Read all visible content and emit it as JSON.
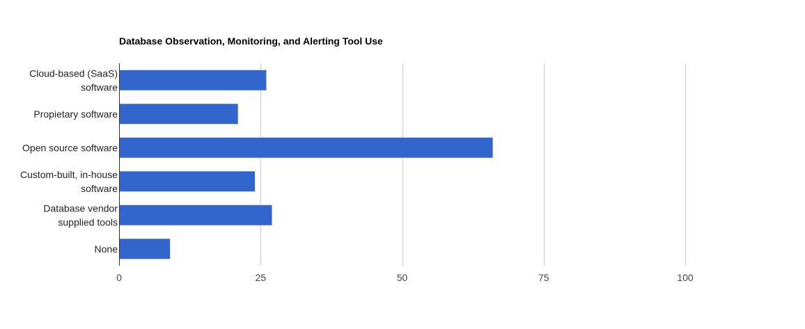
{
  "chart_data": {
    "type": "bar",
    "orientation": "horizontal",
    "title": "Database Observation, Monitoring, and Alerting Tool Use",
    "categories": [
      [
        "Cloud-based (SaaS)",
        "software"
      ],
      [
        "Propietary software"
      ],
      [
        "Open source software"
      ],
      [
        "Custom-built, in-house",
        "software"
      ],
      [
        "Database vendor",
        "supplied tools"
      ],
      [
        "None"
      ]
    ],
    "values": [
      26,
      21,
      66,
      24,
      27,
      9
    ],
    "xlim": [
      0,
      120
    ],
    "xticks": [
      0,
      25,
      50,
      75,
      100
    ],
    "xtick_labels": [
      "0",
      "25",
      "50",
      "75",
      "100"
    ],
    "xlabel": "",
    "ylabel": "",
    "grid": true,
    "legend": "none",
    "colors": {
      "bar": "#3366cc",
      "grid": "#cccccc",
      "axis": "#333333"
    }
  }
}
